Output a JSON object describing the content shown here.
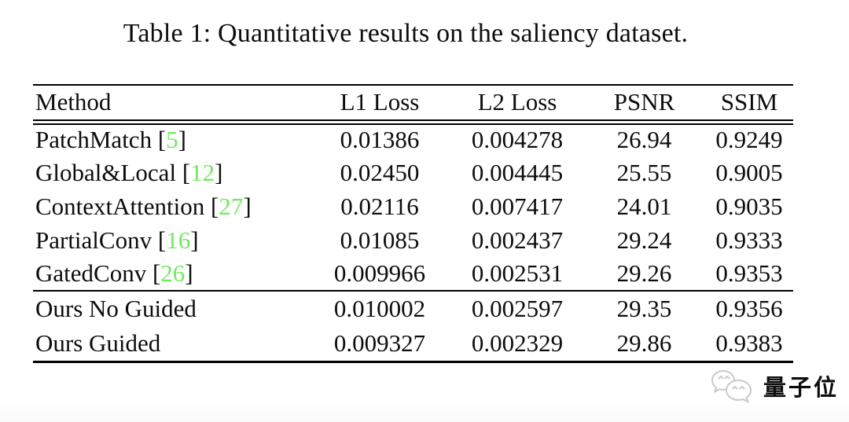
{
  "caption": "Table 1: Quantitative results on the saliency dataset.",
  "colors": {
    "citation_green": "#72e861",
    "rule_black": "#000000",
    "watermark_gray": "#c9c9c9",
    "text_black": "#0d0d0d"
  },
  "table": {
    "columns": [
      "Method",
      "L1 Loss",
      "L2 Loss",
      "PSNR",
      "SSIM"
    ],
    "bracket_open": "[",
    "bracket_close": "]",
    "rows": [
      {
        "method": "PatchMatch",
        "ref": "5",
        "l1": "0.01386",
        "l2": "0.004278",
        "psnr": "26.94",
        "ssim": "0.9249",
        "bold": false,
        "rule_above": false
      },
      {
        "method": "Global&Local",
        "ref": "12",
        "l1": "0.02450",
        "l2": "0.004445",
        "psnr": "25.55",
        "ssim": "0.9005",
        "bold": false,
        "rule_above": false
      },
      {
        "method": "ContextAttention",
        "ref": "27",
        "l1": "0.02116",
        "l2": "0.007417",
        "psnr": "24.01",
        "ssim": "0.9035",
        "bold": false,
        "rule_above": false
      },
      {
        "method": "PartialConv",
        "ref": "16",
        "l1": "0.01085",
        "l2": "0.002437",
        "psnr": "29.24",
        "ssim": "0.9333",
        "bold": false,
        "rule_above": false
      },
      {
        "method": "GatedConv",
        "ref": "26",
        "l1": "0.009966",
        "l2": "0.002531",
        "psnr": "29.26",
        "ssim": "0.9353",
        "bold": false,
        "rule_above": false
      },
      {
        "method": "Ours No Guided",
        "ref": null,
        "l1": "0.010002",
        "l2": "0.002597",
        "psnr": "29.35",
        "ssim": "0.9356",
        "bold": false,
        "rule_above": true
      },
      {
        "method": "Ours Guided",
        "ref": null,
        "l1": "0.009327",
        "l2": "0.002329",
        "psnr": "29.86",
        "ssim": "0.9383",
        "bold": true,
        "rule_above": false
      }
    ]
  },
  "watermark": {
    "text": "量子位",
    "icon": "wechat-chat-bubbles-icon"
  }
}
